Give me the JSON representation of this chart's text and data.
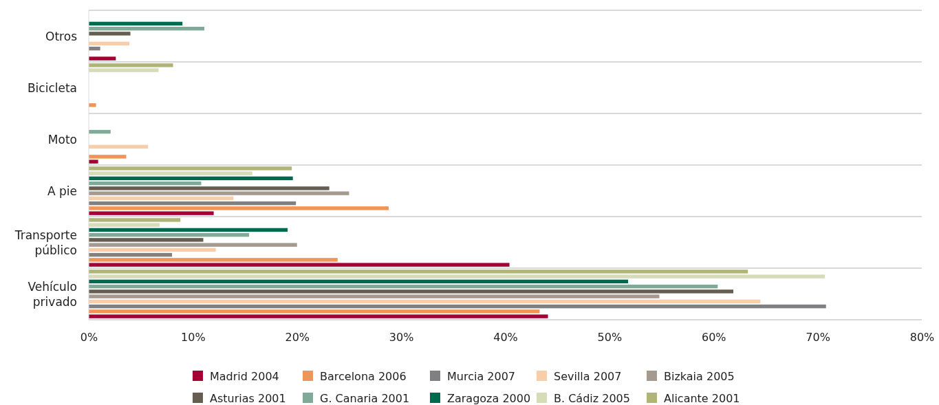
{
  "chart_data": {
    "type": "bar",
    "orientation": "horizontal",
    "categories": [
      "Otros",
      "Bicicleta",
      "Moto",
      "A pie",
      "Transporte público",
      "Vehículo privado"
    ],
    "xlim": [
      0,
      80
    ],
    "xticks": [
      {
        "value": 0,
        "label": "0%"
      },
      {
        "value": 10,
        "label": "10%"
      },
      {
        "value": 20,
        "label": "20%"
      },
      {
        "value": 30,
        "label": "30%"
      },
      {
        "value": 40,
        "label": "40%"
      },
      {
        "value": 50,
        "label": "50%"
      },
      {
        "value": 60,
        "label": "60%"
      },
      {
        "value": 70,
        "label": "70%"
      },
      {
        "value": 80,
        "label": "80%"
      }
    ],
    "grid": "y",
    "legend": "bottom",
    "series": [
      {
        "name": "Madrid 2004",
        "color": "#a50034",
        "values": [
          2.6,
          null,
          0.9,
          12.0,
          40.4,
          44.1
        ]
      },
      {
        "name": "Barcelona 2006",
        "color": "#ee9659",
        "values": [
          null,
          0.7,
          3.6,
          28.8,
          23.9,
          43.3
        ]
      },
      {
        "name": "Murcia 2007",
        "color": "#808083",
        "values": [
          1.1,
          null,
          null,
          19.9,
          8.0,
          70.8
        ]
      },
      {
        "name": "Sevilla 2007",
        "color": "#f8cdaa",
        "values": [
          3.9,
          null,
          5.7,
          13.9,
          12.2,
          64.5
        ]
      },
      {
        "name": "Bizkaia 2005",
        "color": "#a59a90",
        "values": [
          null,
          null,
          null,
          25.0,
          20.0,
          54.8
        ]
      },
      {
        "name": "Asturias 2001",
        "color": "#665e50",
        "values": [
          4.0,
          null,
          null,
          23.1,
          11.0,
          61.9
        ]
      },
      {
        "name": "G. Canaria 2001",
        "color": "#7faa98",
        "values": [
          11.1,
          null,
          2.1,
          10.8,
          15.4,
          60.4
        ]
      },
      {
        "name": "Zaragoza 2000",
        "color": "#006a4e",
        "values": [
          9.0,
          null,
          null,
          19.6,
          19.1,
          51.8
        ]
      },
      {
        "name": "B. Cádiz 2005",
        "color": "#d6dcb8",
        "values": [
          null,
          6.7,
          null,
          15.7,
          6.8,
          70.7
        ]
      },
      {
        "name": "Alicante 2001",
        "color": "#b0b476",
        "values": [
          null,
          8.1,
          null,
          19.5,
          8.8,
          63.3
        ]
      }
    ]
  }
}
